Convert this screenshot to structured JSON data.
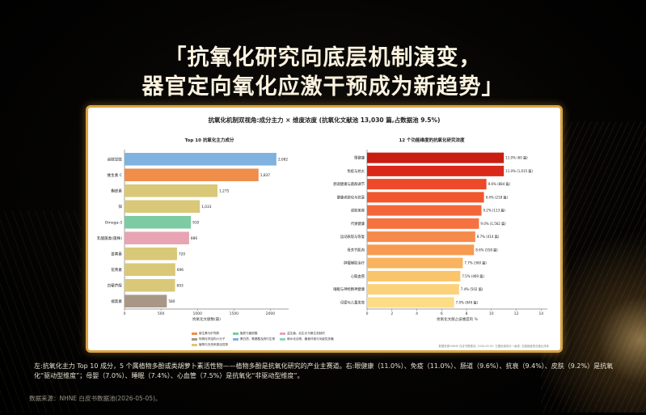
{
  "headline": {
    "line1": "「抗氧化研究向底层机制演变，",
    "line2": "器官定向氧化应激干预成为新趋势」"
  },
  "card": {
    "title": "抗氧化机制双视角:成分主力 × 维度浓度 (抗氧化文献池 13,030 篇,占数据池 9.5%)",
    "source_note": "数据来源:NHNE 白皮书数据池, 2026-05-05. 左图依维成分一级类; 右图维度按浓度比排序"
  },
  "colors": {
    "blue": "#7fb2de",
    "orange": "#ef8d4b",
    "yellow": "#d9c878",
    "green": "#7ccba2",
    "pink": "#e8a4b2",
    "brown": "#a89787",
    "accent_gold": "#d9a441"
  },
  "chart_data": [
    {
      "type": "bar",
      "orientation": "horizontal",
      "title": "Top 10 抗氧化主力成分",
      "xlabel": "抗氧化文献数(篇)",
      "xlim": [
        0,
        2250
      ],
      "xticks": [
        0,
        500,
        1000,
        1500,
        2000
      ],
      "categories": [
        "谷胱甘肽",
        "维生素 C",
        "槲皮素",
        "锌",
        "Omega-3",
        "乳酸菌类(菌株)",
        "姜黄素",
        "花青素",
        "白藜芦醇",
        "褪黑素"
      ],
      "values": [
        2082,
        1837,
        1275,
        1033,
        910,
        886,
        720,
        696,
        693,
        580
      ],
      "value_labels": [
        "2,082",
        "1,837",
        "1,275",
        "1,033",
        "910",
        "886",
        "720",
        "696",
        "693",
        "580"
      ],
      "bar_colors": [
        "#7fb2de",
        "#ef8d4b",
        "#d9c878",
        "#d9c878",
        "#7ccba2",
        "#e8a4b2",
        "#d9c878",
        "#d9c878",
        "#d9c878",
        "#a89787"
      ],
      "legend": [
        {
          "label": "维生素与矿物质",
          "color": "#ef8d4b"
        },
        {
          "label": "脂质与脂肪酸",
          "color": "#7ccba2"
        },
        {
          "label": "益生菌、后生元与微生态制剂",
          "color": "#e8a4b2"
        },
        {
          "label": "特殊化学结构小分子",
          "color": "#a89787"
        },
        {
          "label": "蛋白质、氨基酸及其衍生物",
          "color": "#7fb2de"
        },
        {
          "label": "碳水化合物、膳食纤维与功能性多糖",
          "color": "#8fd0c8"
        },
        {
          "label": "植物与天然来源活性物",
          "color": "#d9c878"
        }
      ]
    },
    {
      "type": "bar",
      "orientation": "horizontal",
      "title": "12 个功能维度的抗氧化研究浓度",
      "xlabel": "抗氧化文献占该维度的 %",
      "xlim": [
        0,
        14.5
      ],
      "xticks": [
        0,
        2,
        4,
        6,
        8,
        10,
        12,
        14
      ],
      "categories": [
        "眼健康",
        "免疫与抗炎",
        "肠道健康与菌群调节",
        "健康老龄化与抗衰",
        "皮肤美容",
        "代谢健康",
        "运动表现与恢复",
        "骨关节肌肉",
        "肿瘤辅助治疗",
        "心脑血管",
        "睡眠与神经精神健康",
        "母婴与儿童发育"
      ],
      "values": [
        11.0,
        11.0,
        9.6,
        9.4,
        9.2,
        9.0,
        8.7,
        8.6,
        7.7,
        7.5,
        7.4,
        7.0
      ],
      "value_labels": [
        "11.0% (60 篇)",
        "11.0% (1,015 篇)",
        "9.6% (884 篇)",
        "9.4% (218 篇)",
        "9.2% (113 篇)",
        "9.0% (1,562 篇)",
        "8.7% (414 篇)",
        "8.6% (558 篇)",
        "7.7% (360 篇)",
        "7.5% (469 篇)",
        "7.4% (502 篇)",
        "7.0% (949 篇)"
      ],
      "bar_colors": [
        "#c81e12",
        "#d9281a",
        "#ec4a2a",
        "#f0572f",
        "#f3663a",
        "#f57240",
        "#f68a4a",
        "#f79a4f",
        "#f9b35e",
        "#fac46a",
        "#fbd27a",
        "#fcdc86"
      ]
    }
  ],
  "caption": "左:抗氧化主力 Top 10 成分，5 个属植物多酚或类胡萝卜素活性物——植物多酚是抗氧化研究的产业主赛道。右:眼健康（11.0%）、免疫（11.0%）、肠道（9.6%）、抗衰（9.4%）、皮肤（9.2%）是抗氧化“驱动型维度”；母婴（7.0%）、睡眠（7.4%）、心血管（7.5%）是抗氧化“非驱动型维度”。",
  "footer": "数据来源：NHNE 白皮书数据池(2026-05-05)。"
}
